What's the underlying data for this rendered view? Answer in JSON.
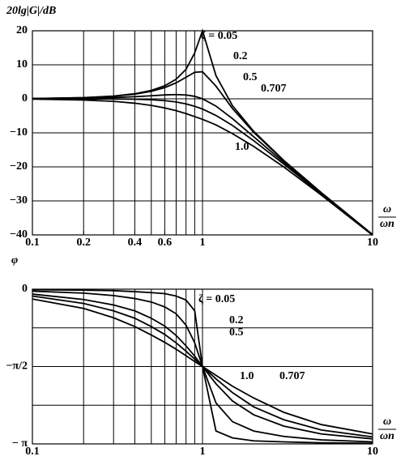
{
  "chart_data": [
    {
      "type": "line",
      "ylabel": "20lg|G|/dB",
      "xlabel": {
        "numerator": "ω",
        "denominator": "ωn"
      },
      "xscale": "log",
      "xlim": [
        0.1,
        10
      ],
      "xticks": [
        0.1,
        0.2,
        0.4,
        0.6,
        1,
        10
      ],
      "xgrid": [
        0.2,
        0.3,
        0.4,
        0.5,
        0.6,
        0.7,
        0.8,
        0.9,
        1
      ],
      "ylim": [
        -40,
        20
      ],
      "yticks": [
        20,
        10,
        0,
        {
          "value": -10,
          "label": "−10"
        },
        {
          "value": -20,
          "label": "−20"
        },
        {
          "value": -30,
          "label": "−30"
        },
        {
          "value": -40,
          "label": "−40"
        }
      ],
      "grid": true,
      "x": [
        0.1,
        0.2,
        0.3,
        0.4,
        0.5,
        0.6,
        0.7,
        0.8,
        0.9,
        1,
        1.2,
        1.5,
        2,
        3,
        5,
        10
      ],
      "series": [
        {
          "name": "ζ = 0.05",
          "color": "#000000",
          "values": [
            0.09,
            0.35,
            0.81,
            1.5,
            2.48,
            3.84,
            5.77,
            8.66,
            13.5,
            20,
            6.82,
            -2.0,
            -9.56,
            -18.07,
            -27.6,
            -39.9
          ]
        },
        {
          "name": "0.2",
          "color": "#000000",
          "values": [
            0.08,
            0.32,
            0.74,
            1.36,
            2.2,
            3.3,
            4.7,
            6.34,
            7.81,
            7.96,
            3.73,
            -2.84,
            -9.84,
            -18.16,
            -27.63,
            -39.92
          ]
        },
        {
          "name": "0.5",
          "color": "#000000",
          "values": [
            0.04,
            0.17,
            0.37,
            0.63,
            0.9,
            1.14,
            1.25,
            1.14,
            0.73,
            0,
            -2.13,
            -5.81,
            -11.14,
            -18.63,
            -27.79,
            -39.96
          ]
        },
        {
          "name": "0.707",
          "color": "#000000",
          "values": [
            0,
            -0.01,
            -0.04,
            -0.11,
            -0.26,
            -0.53,
            -0.93,
            -1.49,
            -2.19,
            -3.01,
            -4.88,
            -7.83,
            -12.3,
            -19.14,
            -27.97,
            -40.0
          ]
        },
        {
          "name": "1.0",
          "color": "#000000",
          "values": [
            -0.09,
            -0.34,
            -0.75,
            -1.29,
            -1.94,
            -2.67,
            -3.49,
            -4.34,
            -5.22,
            -6.02,
            -7.66,
            -10.24,
            -13.98,
            -20.0,
            -28.3,
            -40.09
          ]
        }
      ]
    },
    {
      "type": "line",
      "ylabel": "φ",
      "xlabel": {
        "numerator": "ω",
        "denominator": "ωn"
      },
      "xscale": "log",
      "xlim": [
        0.1,
        10
      ],
      "xticks": [
        0.1,
        1,
        10
      ],
      "xgrid": [
        0.2,
        0.3,
        0.4,
        0.5,
        0.6,
        0.7,
        0.8,
        0.9,
        1
      ],
      "ylim": [
        -3.1416,
        0
      ],
      "yticks": [
        0,
        {
          "value": -1.5708,
          "label": "−π/2"
        },
        {
          "value": -3.1416,
          "label": "− π"
        }
      ],
      "ygrid": [
        -0.7854,
        -2.3562
      ],
      "grid": true,
      "x": [
        0.1,
        0.2,
        0.3,
        0.4,
        0.5,
        0.6,
        0.7,
        0.8,
        0.9,
        1,
        1.2,
        1.5,
        2,
        3,
        5,
        10
      ],
      "series": [
        {
          "name": "ζ = 0.05",
          "color": "#000000",
          "values": [
            -0.01,
            -0.02,
            -0.03,
            -0.05,
            -0.07,
            -0.09,
            -0.14,
            -0.22,
            -0.44,
            -1.57,
            -2.88,
            -3.02,
            -3.08,
            -3.1,
            -3.12,
            -3.13
          ]
        },
        {
          "name": "0.2",
          "color": "#000000",
          "values": [
            -0.04,
            -0.08,
            -0.13,
            -0.19,
            -0.26,
            -0.36,
            -0.5,
            -0.73,
            -1.09,
            -1.57,
            -2.31,
            -2.69,
            -2.88,
            -2.99,
            -3.06,
            -3.1
          ]
        },
        {
          "name": "0.5",
          "color": "#000000",
          "values": [
            -0.1,
            -0.21,
            -0.32,
            -0.44,
            -0.59,
            -0.75,
            -0.94,
            -1.15,
            -1.36,
            -1.57,
            -1.92,
            -2.27,
            -2.55,
            -2.78,
            -2.94,
            -3.04
          ]
        },
        {
          "name": "0.707",
          "color": "#000000",
          "values": [
            -0.14,
            -0.29,
            -0.44,
            -0.59,
            -0.76,
            -0.92,
            -1.09,
            -1.26,
            -1.42,
            -1.57,
            -1.82,
            -2.1,
            -2.39,
            -2.65,
            -2.86,
            -3.0
          ]
        },
        {
          "name": "1.0",
          "color": "#000000",
          "values": [
            -0.2,
            -0.39,
            -0.58,
            -0.76,
            -0.93,
            -1.08,
            -1.22,
            -1.35,
            -1.47,
            -1.57,
            -1.75,
            -1.97,
            -2.21,
            -2.5,
            -2.75,
            -2.94
          ]
        }
      ]
    }
  ]
}
